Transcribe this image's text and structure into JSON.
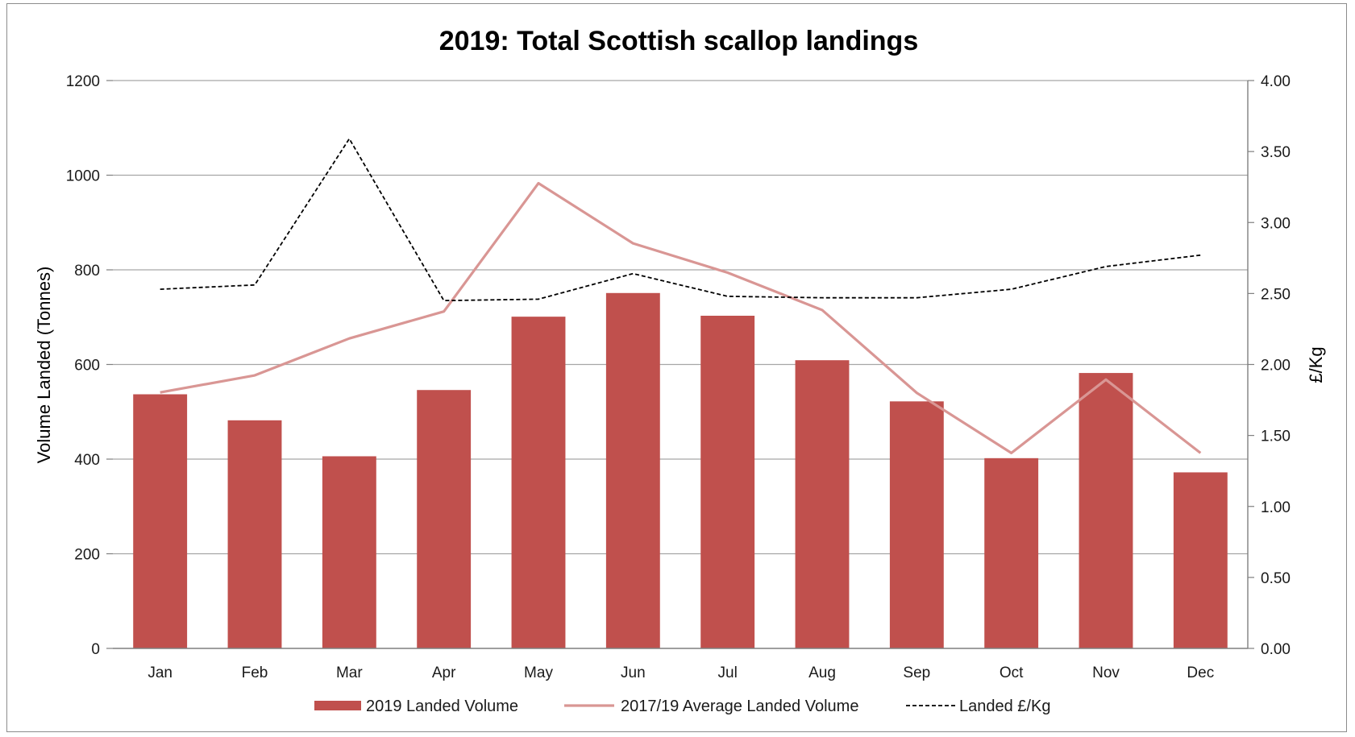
{
  "chart_data": {
    "type": "bar",
    "title": "2019: Total Scottish scallop landings",
    "categories": [
      "Jan",
      "Feb",
      "Mar",
      "Apr",
      "May",
      "Jun",
      "Jul",
      "Aug",
      "Sep",
      "Oct",
      "Nov",
      "Dec"
    ],
    "series": [
      {
        "name": "2019  Landed Volume",
        "kind": "bar",
        "axis": "left",
        "values": [
          537,
          482,
          406,
          546,
          701,
          751,
          703,
          609,
          522,
          402,
          582,
          372
        ]
      },
      {
        "name": "2017/19 Average Landed Volume",
        "kind": "line",
        "axis": "left",
        "values": [
          541,
          577,
          655,
          712,
          983,
          856,
          794,
          715,
          540,
          413,
          568,
          413
        ]
      },
      {
        "name": "Landed £/Kg",
        "kind": "dashed-line",
        "axis": "right",
        "values": [
          2.53,
          2.56,
          3.59,
          2.45,
          2.46,
          2.64,
          2.48,
          2.47,
          2.47,
          2.53,
          2.69,
          2.77
        ]
      }
    ],
    "ylabel": "Volume Landed (Tonnes)",
    "ylim": [
      0,
      1200
    ],
    "yticks": [
      "0",
      "200",
      "400",
      "600",
      "800",
      "1000",
      "1200"
    ],
    "y2label": "£/Kg",
    "y2lim": [
      0,
      4
    ],
    "y2ticks": [
      "0.00",
      "0.50",
      "1.00",
      "1.50",
      "2.00",
      "2.50",
      "3.00",
      "3.50",
      "4.00"
    ],
    "grid": true,
    "legend_position": "bottom",
    "colors": {
      "bar": "#c0504d",
      "avg_line": "#d99694",
      "price_line": "#000000",
      "grid": "#a6a6a6"
    }
  }
}
